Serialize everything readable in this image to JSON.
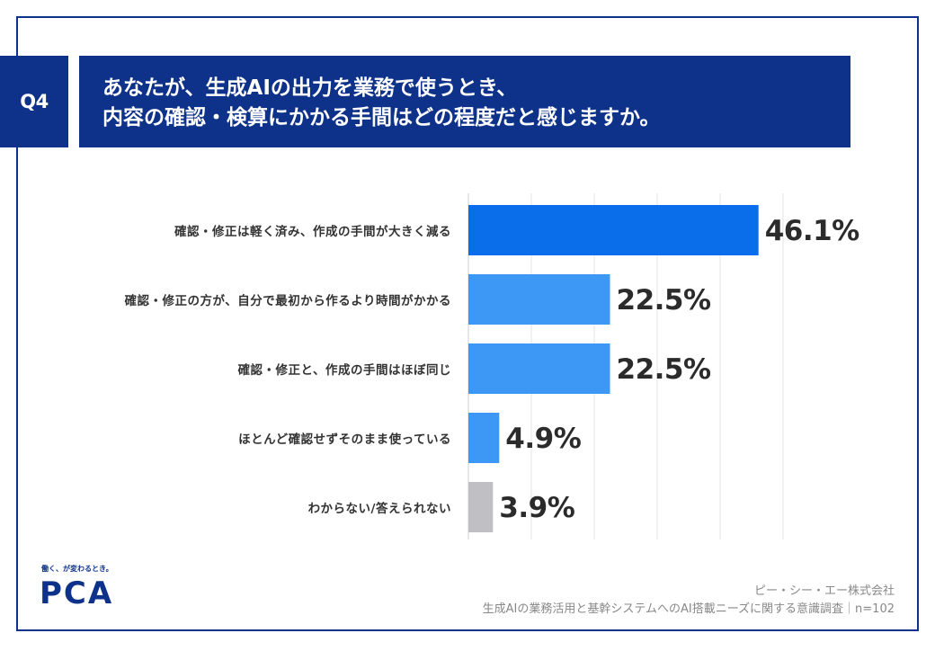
{
  "question": {
    "number": "Q4",
    "title_lines": [
      "あなたが、生成AIの出力を業務で使うとき、",
      "内容の確認・検算にかかる手間はどの程度だと感じますか。"
    ]
  },
  "chart_data": {
    "type": "bar",
    "orientation": "horizontal",
    "categories": [
      "確認・修正は軽く済み、作成の手間が大きく減る",
      "確認・修正の方が、自分で最初から作るより時間がかかる",
      "確認・修正と、作成の手間はほぼ同じ",
      "ほとんど確認せずそのまま使っている",
      "わからない/答えられない"
    ],
    "values": [
      46.1,
      22.5,
      22.5,
      4.9,
      3.9
    ],
    "value_labels": [
      "46.1%",
      "22.5%",
      "22.5%",
      "4.9%",
      "3.9%"
    ],
    "colors": [
      "#0a6eeb",
      "#3d97f4",
      "#3d97f4",
      "#3d97f4",
      "#c0c0c4"
    ],
    "xlim": [
      0,
      50
    ],
    "grid": true,
    "gridline_count": 6
  },
  "brand": {
    "tagline": "働く、が変わるとき。",
    "logo_text": "PCA"
  },
  "source": {
    "company": "ピー・シー・エー株式会社",
    "survey": "生成AIの業務活用と基幹システムへのAI搭載ニーズに関する意識調査｜n=102"
  }
}
